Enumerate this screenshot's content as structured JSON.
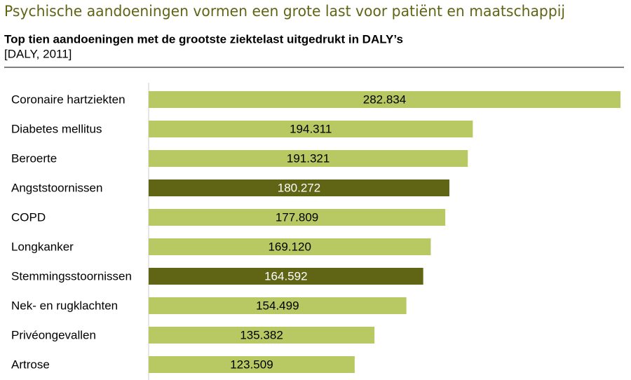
{
  "chart_data": {
    "type": "hbar",
    "title": "Psychische aandoeningen vormen een grote last voor patiënt en maatschappij",
    "subtitle": "Top tien aandoeningen met de grootste ziektelast uitgedrukt in DALY’s",
    "source": "[DALY, 2011]",
    "categories": [
      "Coronaire hartziekten",
      "Diabetes mellitus",
      "Beroerte",
      "Angststoornissen",
      "COPD",
      "Longkanker",
      "Stemmingsstoornissen",
      "Nek- en rugklachten",
      "Privéongevallen",
      "Artrose"
    ],
    "values": [
      282834,
      194311,
      191321,
      180272,
      177809,
      169120,
      164592,
      154499,
      135382,
      123509
    ],
    "value_labels": [
      "282.834",
      "194.311",
      "191.321",
      "180.272",
      "177.809",
      "169.120",
      "164.592",
      "154.499",
      "135.382",
      "123.509"
    ],
    "colors": [
      "#b8c964",
      "#b8c964",
      "#b8c964",
      "#5f6515",
      "#b8c964",
      "#b8c964",
      "#5f6515",
      "#b8c964",
      "#b8c964",
      "#b8c964"
    ]
  }
}
